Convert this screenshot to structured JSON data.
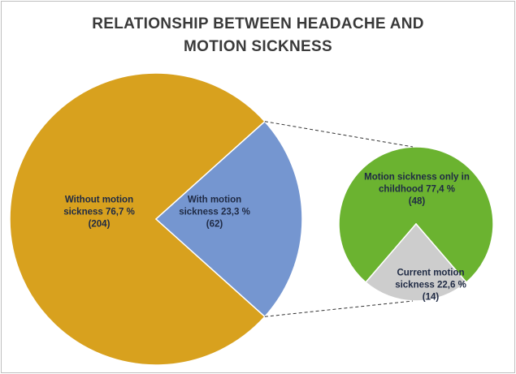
{
  "chart_data": {
    "type": "pie",
    "title": "RELATIONSHIP BETWEEN HEADACHE AND MOTION SICKNESS",
    "categories": [
      "Without motion sickness",
      "With motion sickness"
    ],
    "values": [
      76.7,
      23.3
    ],
    "value_labels": [
      "76,7 %",
      "23,3 %"
    ],
    "counts": [
      204,
      62
    ],
    "count_labels": [
      "(204)",
      "(62)"
    ],
    "colors": [
      "#d8a11e",
      "#7596d0"
    ],
    "secondary": {
      "categories": [
        "Motion sickness only in childhood",
        "Current motion sickness"
      ],
      "values": [
        77.4,
        22.6
      ],
      "value_labels": [
        "77,4 %",
        "22,6 %"
      ],
      "counts": [
        48,
        14
      ],
      "count_labels": [
        "(48)",
        "(14)"
      ],
      "colors": [
        "#6bb330",
        "#cdcdcd"
      ]
    }
  }
}
